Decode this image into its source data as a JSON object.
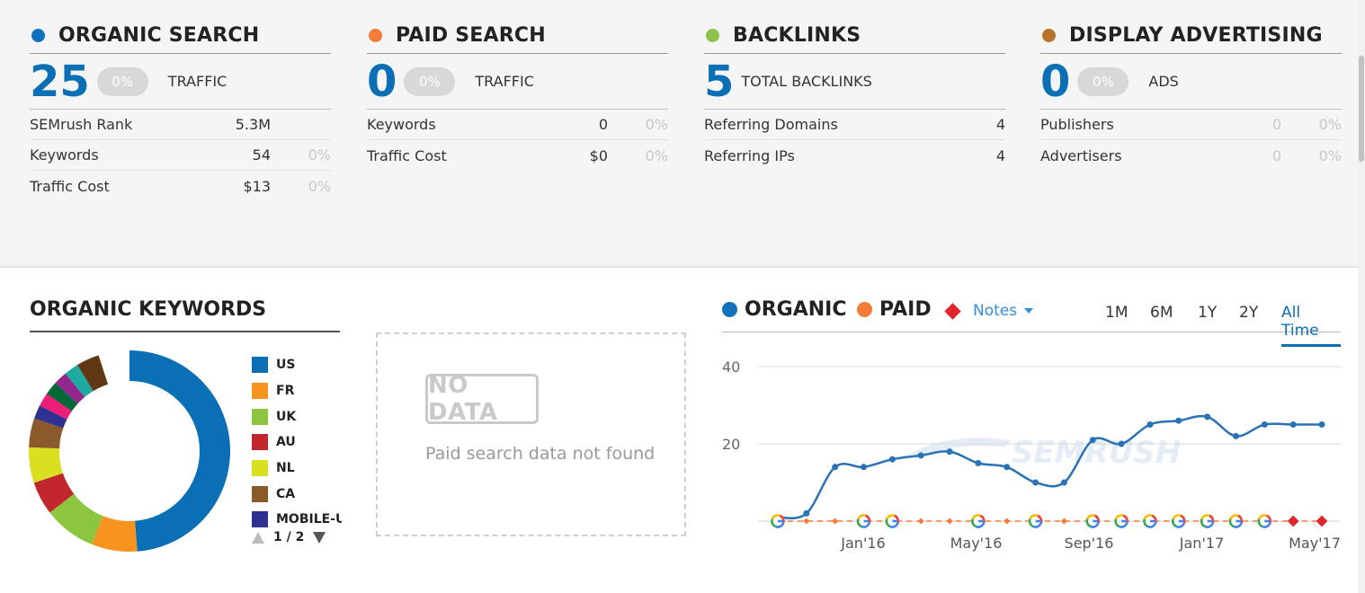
{
  "summary": {
    "organic": {
      "title": "ORGANIC SEARCH",
      "color": "#1072bd",
      "big_value": "25",
      "change": "0%",
      "big_label": "TRAFFIC",
      "rows": [
        {
          "name": "SEMrush Rank",
          "value": "5.3M",
          "pct": ""
        },
        {
          "name": "Keywords",
          "value": "54",
          "pct": "0%"
        },
        {
          "name": "Traffic Cost",
          "value": "$13",
          "pct": "0%"
        }
      ]
    },
    "paid": {
      "title": "PAID SEARCH",
      "color": "#f37c3a",
      "big_value": "0",
      "change": "0%",
      "big_label": "TRAFFIC",
      "rows": [
        {
          "name": "Keywords",
          "value": "0",
          "pct": "0%"
        },
        {
          "name": "Traffic Cost",
          "value": "$0",
          "pct": "0%"
        }
      ]
    },
    "backlinks": {
      "title": "BACKLINKS",
      "color": "#8ec24c",
      "big_value": "5",
      "big_label": "TOTAL BACKLINKS",
      "rows": [
        {
          "name": "Referring Domains",
          "value": "4"
        },
        {
          "name": "Referring IPs",
          "value": "4"
        }
      ]
    },
    "display": {
      "title": "DISPLAY ADVERTISING",
      "color": "#b5732c",
      "big_value": "0",
      "change": "0%",
      "big_label": "ADS",
      "rows": [
        {
          "name": "Publishers",
          "value": "0",
          "pct": "0%"
        },
        {
          "name": "Advertisers",
          "value": "0",
          "pct": "0%"
        }
      ]
    }
  },
  "organic_keywords": {
    "title": "ORGANIC KEYWORDS",
    "legend": [
      {
        "label": "US",
        "color": "#0a6fb5"
      },
      {
        "label": "FR",
        "color": "#f7931e"
      },
      {
        "label": "UK",
        "color": "#8cc63f"
      },
      {
        "label": "AU",
        "color": "#c1272d"
      },
      {
        "label": "NL",
        "color": "#d9e021"
      },
      {
        "label": "CA",
        "color": "#8b5a2b"
      },
      {
        "label": "MOBILE-US",
        "color": "#2e3192"
      }
    ],
    "pager": "1 / 2"
  },
  "paid_box": {
    "badge": "NO DATA",
    "message": "Paid search data not found"
  },
  "trend": {
    "organic_label": "ORGANIC",
    "paid_label": "PAID",
    "notes_label": "Notes",
    "ranges": [
      "1M",
      "6M",
      "1Y",
      "2Y",
      "All Time"
    ],
    "active_range": "All Time",
    "colors": {
      "organic": "#2a72b5",
      "paid": "#f37c3a",
      "notes": "#e0262c"
    }
  },
  "chart_data": {
    "type": "line",
    "x_tick_labels": [
      "Jan'16",
      "May'16",
      "Sep'16",
      "Jan'17",
      "May'17"
    ],
    "y_ticks": [
      20,
      40
    ],
    "ylim": [
      0,
      40
    ],
    "series": [
      {
        "name": "ORGANIC",
        "values": [
          1,
          2,
          14,
          14,
          16,
          17,
          18,
          15,
          14,
          10,
          10,
          21,
          20,
          25,
          26,
          27,
          22,
          25,
          25,
          25
        ]
      },
      {
        "name": "PAID",
        "values": [
          0,
          0,
          0,
          0,
          0,
          0,
          0,
          0,
          0,
          0,
          0,
          0,
          0,
          0,
          0,
          0,
          0,
          0,
          0,
          0
        ]
      }
    ],
    "google_update_markers": [
      0,
      3,
      4,
      7,
      9,
      11,
      12,
      13,
      14,
      15,
      16,
      17
    ],
    "note_markers": [
      18,
      19
    ]
  }
}
